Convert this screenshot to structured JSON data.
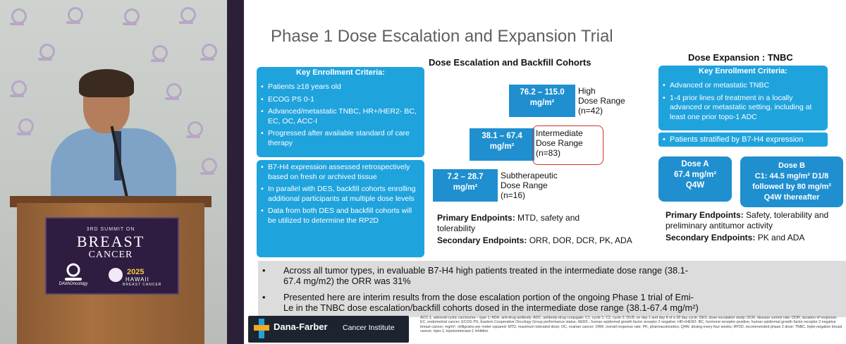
{
  "colors": {
    "slide_bg": "#ffffff",
    "box_blue": "#1fa3dd",
    "dose_blue": "#1f8fd0",
    "highlight_red": "#d0342c",
    "bullet_bg": "#dcdcdc",
    "podium_purple": "#2e1d40"
  },
  "video": {
    "icons": [
      "pin-logo-icon"
    ],
    "podium": {
      "summit_line": "3RD SUMMIT ON",
      "breast": "BREAST",
      "cancer": "CANCER",
      "dav": "DAVAOncology",
      "year": "2025",
      "hawaii": "HAWAII",
      "hawaii_sub": "BREAST CANCER"
    }
  },
  "slide": {
    "title": "Phase 1 Dose Escalation and Expansion Trial",
    "escalation": {
      "heading": "Dose Escalation and Backfill Cohorts",
      "criteria_title": "Key Enrollment Criteria:",
      "criteria": [
        "Patients ≥18 years old",
        "ECOG PS 0-1",
        "Advanced/metastatic TNBC, HR+/HER2- BC, EC, OC, ACC-I",
        "Progressed after available standard of care therapy"
      ],
      "notes": [
        "B7-H4 expression assessed retrospectively based on fresh or archived tissue",
        "In parallel with DES, backfill cohorts enrolling additional participants at multiple dose levels",
        "Data from both DES and backfill cohorts will be utilized to determine the RP2D"
      ],
      "doses": [
        {
          "range": "76.2 – 115.0",
          "unit": "mg/m²",
          "label1": "High",
          "label2": "Dose Range",
          "n": "(n=42)"
        },
        {
          "range": "38.1 – 67.4",
          "unit": "mg/m²",
          "label1": "Intermediate",
          "label2": "Dose Range",
          "n": "(n=83)"
        },
        {
          "range": "7.2 – 28.7",
          "unit": "mg/m²",
          "label1": "Subtherapeutic",
          "label2": "Dose Range",
          "n": "(n=16)"
        }
      ],
      "primary_label": "Primary Endpoints:",
      "primary_text": "MTD, safety and tolerability",
      "secondary_label": "Secondary Endpoints:",
      "secondary_text": "ORR, DOR, DCR, PK, ADA"
    },
    "expansion": {
      "heading": "Dose Expansion : TNBC",
      "criteria_title": "Key Enrollment Criteria:",
      "criteria": [
        "Advanced or metastatic TNBC",
        "1-4 prior lines of treatment in a locally advanced or metastatic setting, including at least one prior topo-1 ADC"
      ],
      "stratified": "Patients stratified by B7-H4 expression",
      "dose_a": {
        "title": "Dose A",
        "line1": "67.4 mg/m²",
        "line2": "Q4W"
      },
      "dose_b": {
        "title": "Dose B",
        "line1": "C1: 44.5 mg/m² D1/8",
        "line2": "followed by 80 mg/m²",
        "line3": "Q4W thereafter"
      },
      "primary_label": "Primary Endpoints:",
      "primary_text": "Safety, tolerability and preliminary antitumor activity",
      "secondary_label": "Secondary Endpoints:",
      "secondary_text": "PK and ADA"
    },
    "bullets": [
      "Across all tumor types, in evaluable B7-H4 high patients treated in the intermediate dose range (38.1-67.4 mg/m2) the ORR was 31%",
      "Presented here are interim results from the dose escalation portion of the ongoing Phase 1 trial of Emi-Le in the TNBC dose escalation/backfill cohorts dosed in the intermediate dose range (38.1-67.4 mg/m²)"
    ],
    "footer": {
      "org_name": "Dana-Farber",
      "org_suffix": "Cancer Institute",
      "footnote": "ACC-1, adenoid cystic carcinoma – type 1; ADA, anti-drug antibody; ADC, antibody-drug conjugate; C1, cycle 1; C2, cycle 2; D1/8, on day 1 and day 8 of a 28 day cycle; DES, dose escalation study; DCR, disease control rate; DOR, duration of response; EC, endometrial cancer; ECOG PS, Eastern Cooperative Oncology Group performance status; HER2-, human epidermal growth factor receptor 2 negative; HR+/HER2- BC, hormone-receptor-positive, human epidermal growth factor receptor 2 negative breast cancer; mg/m², milligrams per meter squared; MTD, maximum tolerated dose; OC, ovarian cancer; ORR, overall response rate; PK, pharmacokinetics; Q4W, dosing every four weeks; RP2D, recommended phase 2 dose; TNBC, triple-negative breast cancer; topo-1, topoisomerase-1 inhibitor"
    }
  }
}
